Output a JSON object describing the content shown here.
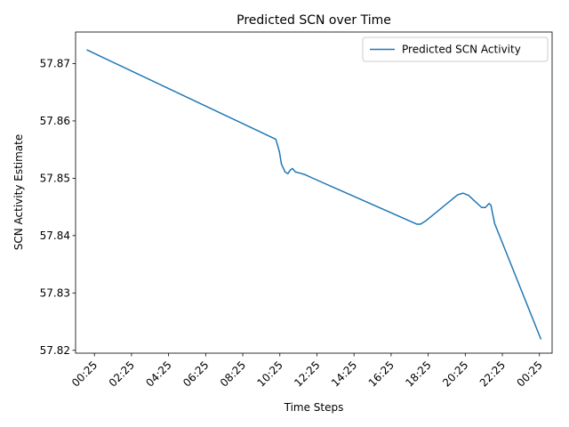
{
  "chart_data": {
    "type": "line",
    "title": "Predicted SCN over Time",
    "xlabel": "Time Steps",
    "ylabel": "SCN Activity Estimate",
    "x_tick_labels": [
      "00:25",
      "02:25",
      "04:25",
      "06:25",
      "08:25",
      "10:25",
      "12:25",
      "14:25",
      "16:25",
      "18:25",
      "20:25",
      "22:25",
      "00:25"
    ],
    "x_tick_hours": [
      0.417,
      2.417,
      4.417,
      6.417,
      8.417,
      10.417,
      12.417,
      14.417,
      16.417,
      18.417,
      20.417,
      22.417,
      24.417
    ],
    "xlim_hours": [
      -0.6,
      25.1
    ],
    "y_ticks": [
      57.82,
      57.83,
      57.84,
      57.85,
      57.86,
      57.87
    ],
    "y_tick_labels": [
      "57.82",
      "57.83",
      "57.84",
      "57.85",
      "57.86",
      "57.87"
    ],
    "ylim": [
      57.8195,
      57.8755
    ],
    "grid": false,
    "legend_position": "top-right",
    "series": [
      {
        "name": "Predicted SCN Activity",
        "color": "#1f77b4",
        "points": [
          [
            0.0,
            57.8724
          ],
          [
            10.2,
            57.8568
          ],
          [
            10.3,
            57.8557
          ],
          [
            10.4,
            57.8545
          ],
          [
            10.5,
            57.8525
          ],
          [
            10.7,
            57.8511
          ],
          [
            10.85,
            57.8508
          ],
          [
            11.0,
            57.8515
          ],
          [
            11.1,
            57.8517
          ],
          [
            11.25,
            57.8511
          ],
          [
            11.5,
            57.8509
          ],
          [
            11.8,
            57.8506
          ],
          [
            12.2,
            57.85
          ],
          [
            17.8,
            57.842
          ],
          [
            18.0,
            57.842
          ],
          [
            18.3,
            57.8426
          ],
          [
            20.0,
            57.8471
          ],
          [
            20.3,
            57.8474
          ],
          [
            20.6,
            57.847
          ],
          [
            20.9,
            57.8461
          ],
          [
            21.3,
            57.8449
          ],
          [
            21.5,
            57.8449
          ],
          [
            21.7,
            57.8456
          ],
          [
            21.8,
            57.8453
          ],
          [
            21.9,
            57.8437
          ],
          [
            22.0,
            57.8421
          ],
          [
            22.2,
            57.8405
          ],
          [
            24.5,
            57.8219
          ]
        ]
      }
    ]
  }
}
